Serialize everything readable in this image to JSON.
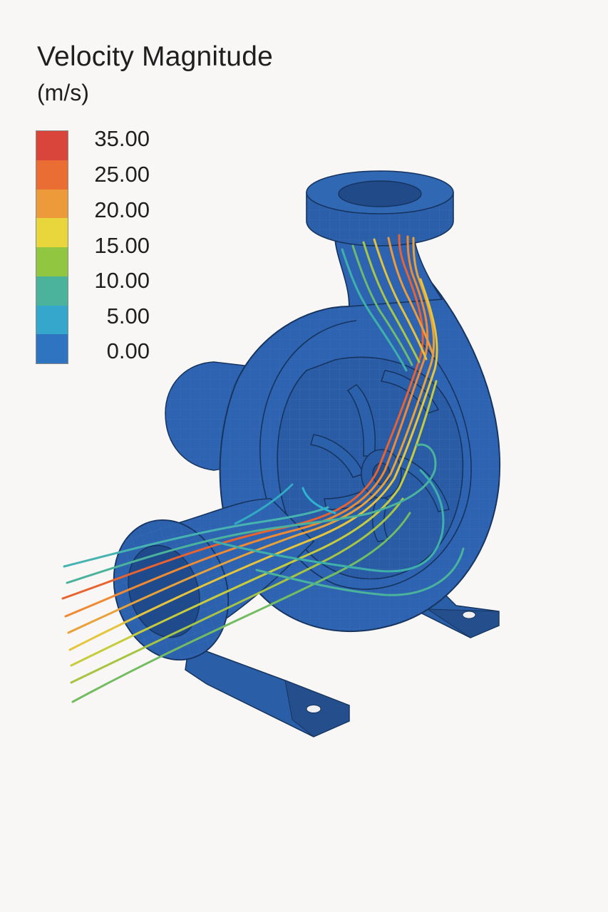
{
  "legend": {
    "title": "Velocity Magnitude",
    "units": "(m/s)",
    "ticks": [
      "35.00",
      "25.00",
      "20.00",
      "15.00",
      "10.00",
      "5.00",
      "0.00"
    ],
    "colors": [
      "#d9453a",
      "#ea6d33",
      "#ec9a3a",
      "#e9d53c",
      "#90c640",
      "#4bb39c",
      "#36a7cc",
      "#2f74c0"
    ]
  },
  "colors": {
    "pump_body": "#2d63b0",
    "pump_shadow": "#1f4c8f",
    "pump_highlight": "#3b76c4",
    "outline": "#16345f"
  }
}
